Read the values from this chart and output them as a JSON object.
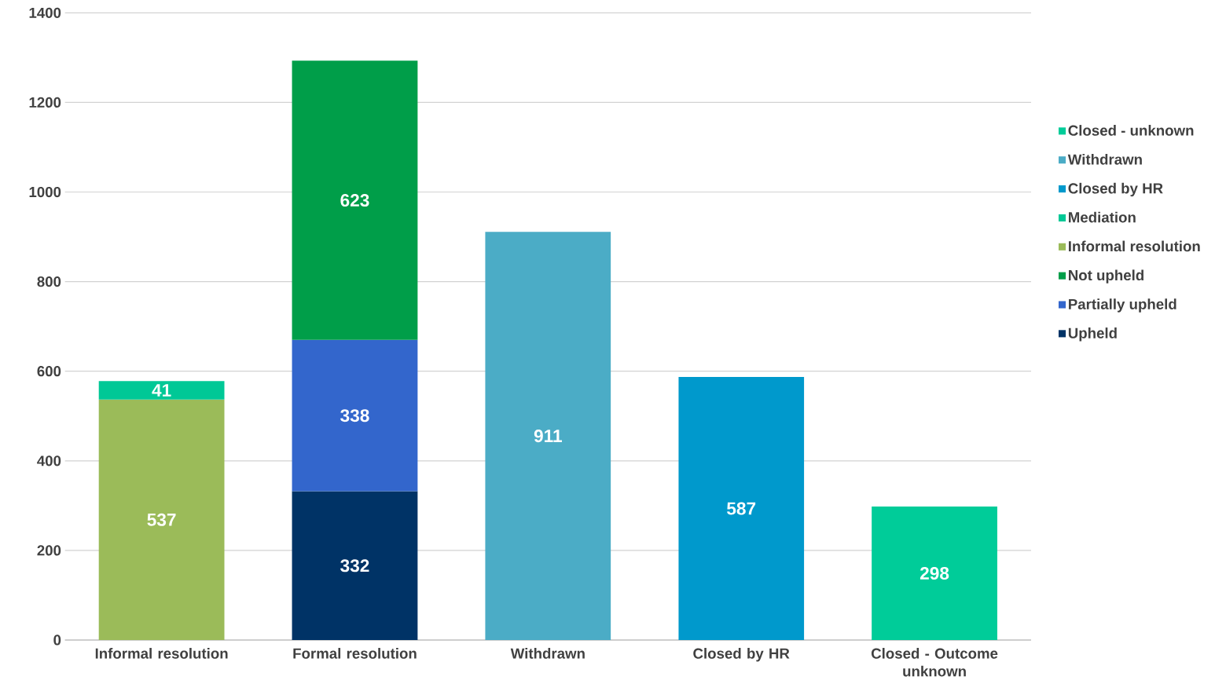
{
  "chart_data": {
    "type": "bar",
    "stacked": true,
    "categories": [
      "Informal resolution",
      "Formal resolution",
      "Withdrawn",
      "Closed by HR",
      "Closed - Outcome unknown"
    ],
    "series": [
      {
        "name": "Upheld",
        "color": "#003366",
        "values": [
          null,
          332,
          null,
          null,
          null
        ]
      },
      {
        "name": "Partially upheld",
        "color": "#3366cc",
        "values": [
          null,
          338,
          null,
          null,
          null
        ]
      },
      {
        "name": "Not upheld",
        "color": "#009e49",
        "values": [
          null,
          623,
          null,
          null,
          null
        ]
      },
      {
        "name": "Informal resolution",
        "color": "#9bbb59",
        "values": [
          537,
          null,
          null,
          null,
          null
        ]
      },
      {
        "name": "Mediation",
        "color": "#00c896",
        "values": [
          41,
          null,
          null,
          null,
          null
        ]
      },
      {
        "name": "Closed by HR",
        "color": "#0099cc",
        "values": [
          null,
          null,
          null,
          587,
          null
        ]
      },
      {
        "name": "Withdrawn",
        "color": "#4bacc6",
        "values": [
          null,
          null,
          911,
          null,
          null
        ]
      },
      {
        "name": "Closed - unknown",
        "color": "#00cc99",
        "values": [
          null,
          null,
          null,
          null,
          298
        ]
      }
    ],
    "ylim": [
      0,
      1400
    ],
    "yticks": [
      0,
      200,
      400,
      600,
      800,
      1000,
      1200,
      1400
    ],
    "grid": "y",
    "legend": "right",
    "data_labels": true
  }
}
